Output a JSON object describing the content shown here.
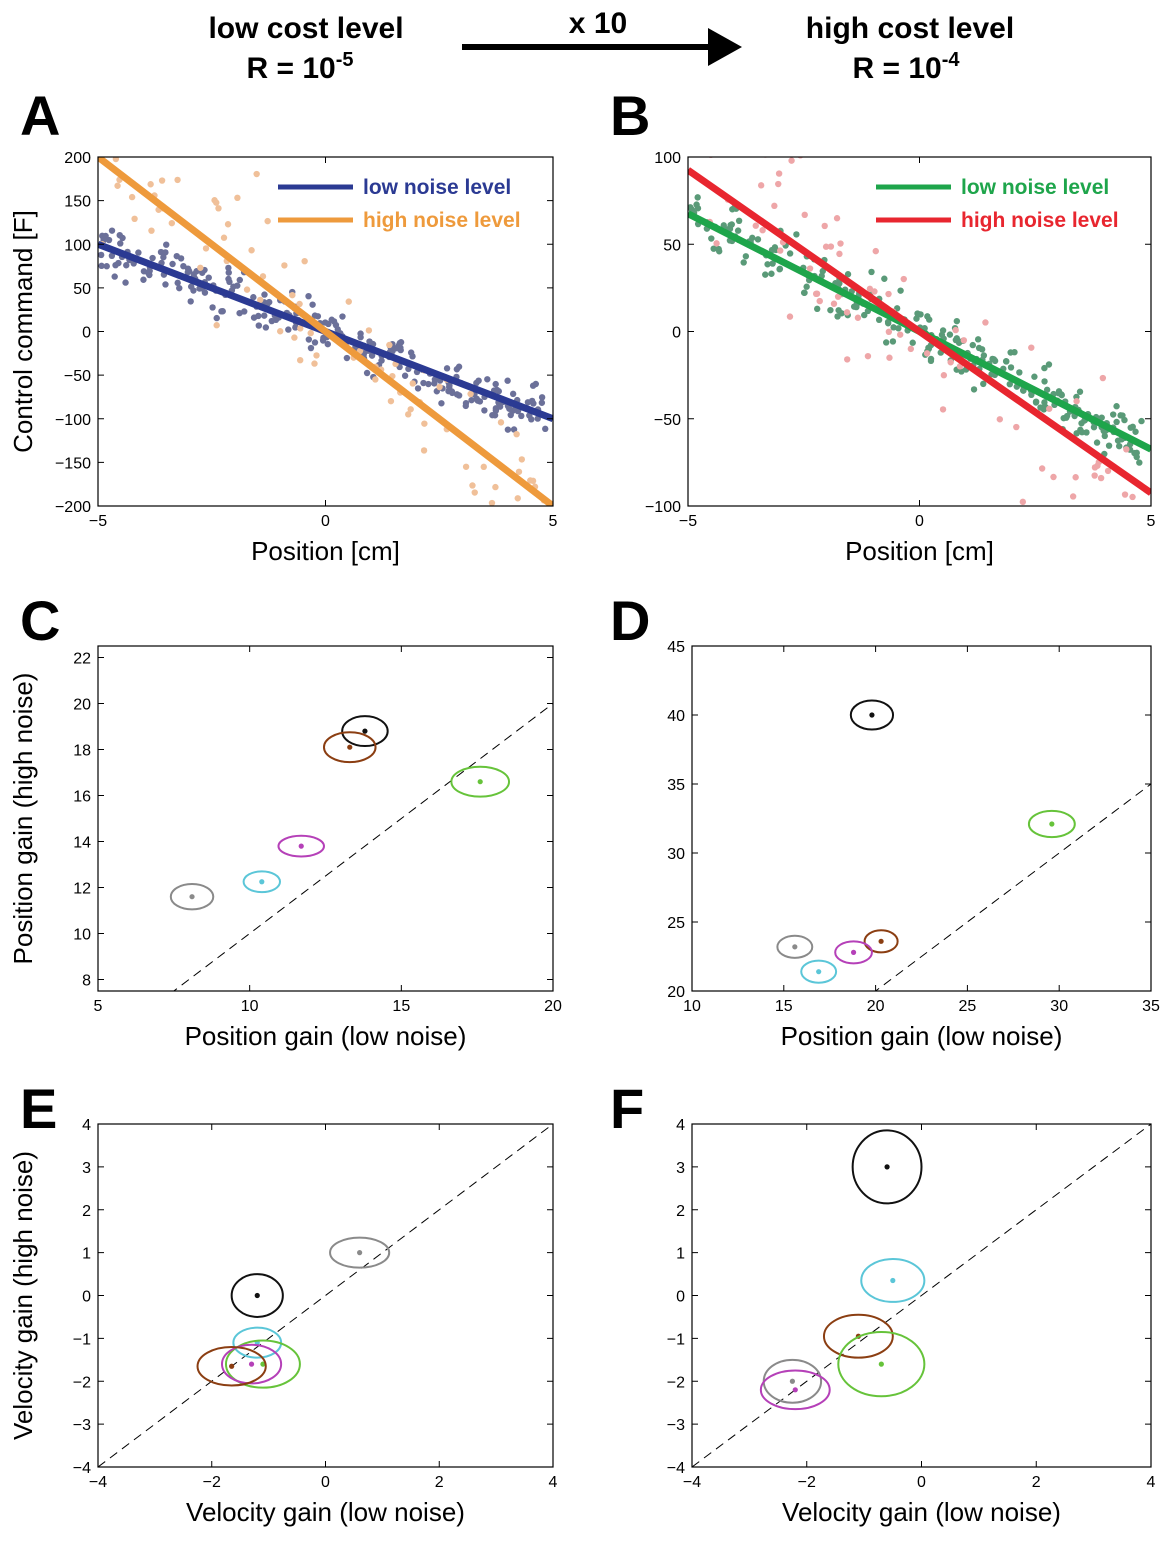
{
  "header": {
    "left_title": "low cost level",
    "left_r_prefix": "R = 10",
    "left_r_exp": "-5",
    "arrow_label": "x 10",
    "right_title": "high cost level",
    "right_r_prefix": "R = 10",
    "right_r_exp": "-4"
  },
  "chart_data": [
    {
      "panel": "A",
      "type": "scatter",
      "xlabel": "Position [cm]",
      "ylabel": "Control command [F]",
      "xlim": [
        -5,
        5
      ],
      "ylim": [
        -200,
        200
      ],
      "xticks": [
        -5,
        0,
        5
      ],
      "yticks": [
        -200,
        -150,
        -100,
        -50,
        0,
        50,
        100,
        150,
        200
      ],
      "legend_position": "top-right",
      "series": [
        {
          "name": "low noise level",
          "color": "#2b3a93",
          "point_color": "#6b7099",
          "fit_slope": -20,
          "fit_intercept": 0,
          "point_count": 260,
          "spread": 14
        },
        {
          "name": "high noise level",
          "color": "#ee9a3c",
          "point_color": "#f0c099",
          "fit_slope": -40,
          "fit_intercept": 0,
          "point_count": 90,
          "spread": 45
        }
      ]
    },
    {
      "panel": "B",
      "type": "scatter",
      "xlabel": "Position [cm]",
      "ylabel": "",
      "xlim": [
        -5,
        5
      ],
      "ylim": [
        -100,
        100
      ],
      "xticks": [
        -5,
        0,
        5
      ],
      "yticks": [
        -100,
        -50,
        0,
        50,
        100
      ],
      "legend_position": "top-right",
      "series": [
        {
          "name": "low noise level",
          "color": "#1ea54b",
          "point_color": "#5a9a78",
          "fit_slope": -13.5,
          "fit_intercept": 0,
          "point_count": 260,
          "spread": 8
        },
        {
          "name": "high noise level",
          "color": "#e8262f",
          "point_color": "#eea6a8",
          "fit_slope": -18.5,
          "fit_intercept": 0,
          "point_count": 80,
          "spread": 24
        }
      ]
    },
    {
      "panel": "C",
      "type": "scatter",
      "xlabel": "Position gain (low noise)",
      "ylabel": "Position gain (high noise)",
      "xlim": [
        5,
        20
      ],
      "ylim": [
        7.5,
        22.5
      ],
      "xticks": [
        5,
        10,
        15,
        20
      ],
      "yticks": [
        8,
        10,
        12,
        14,
        16,
        18,
        20,
        22
      ],
      "diagonal": true,
      "subjects": [
        {
          "x": 13.8,
          "y": 18.8,
          "rx": 0.75,
          "ry": 0.65,
          "color": "#111111"
        },
        {
          "x": 13.3,
          "y": 18.1,
          "rx": 0.85,
          "ry": 0.65,
          "color": "#8b3e12"
        },
        {
          "x": 17.6,
          "y": 16.6,
          "rx": 0.95,
          "ry": 0.65,
          "color": "#66c33a"
        },
        {
          "x": 11.7,
          "y": 13.8,
          "rx": 0.75,
          "ry": 0.45,
          "color": "#b540b8"
        },
        {
          "x": 10.4,
          "y": 12.25,
          "rx": 0.6,
          "ry": 0.45,
          "color": "#5bc6d8"
        },
        {
          "x": 8.1,
          "y": 11.6,
          "rx": 0.7,
          "ry": 0.55,
          "color": "#8a8a8a"
        }
      ]
    },
    {
      "panel": "D",
      "type": "scatter",
      "xlabel": "Position gain (low noise)",
      "ylabel": "",
      "xlim": [
        10,
        35
      ],
      "ylim": [
        20,
        45
      ],
      "xticks": [
        10,
        15,
        20,
        25,
        30,
        35
      ],
      "yticks": [
        20,
        25,
        30,
        35,
        40,
        45
      ],
      "diagonal": true,
      "subjects": [
        {
          "x": 19.8,
          "y": 40.0,
          "rx": 1.15,
          "ry": 1.05,
          "color": "#111111"
        },
        {
          "x": 29.6,
          "y": 32.1,
          "rx": 1.25,
          "ry": 0.95,
          "color": "#66c33a"
        },
        {
          "x": 20.3,
          "y": 23.6,
          "rx": 0.9,
          "ry": 0.8,
          "color": "#8b3e12"
        },
        {
          "x": 15.6,
          "y": 23.2,
          "rx": 0.95,
          "ry": 0.8,
          "color": "#8a8a8a"
        },
        {
          "x": 18.8,
          "y": 22.8,
          "rx": 1.0,
          "ry": 0.8,
          "color": "#b540b8"
        },
        {
          "x": 16.9,
          "y": 21.4,
          "rx": 0.95,
          "ry": 0.8,
          "color": "#5bc6d8"
        }
      ]
    },
    {
      "panel": "E",
      "type": "scatter",
      "xlabel": "Velocity gain (low noise)",
      "ylabel": "Velocity gain (high noise)",
      "xlim": [
        -4,
        4
      ],
      "ylim": [
        -4,
        4
      ],
      "xticks": [
        -4,
        -2,
        0,
        2,
        4
      ],
      "yticks": [
        -4,
        -3,
        -2,
        -1,
        0,
        1,
        2,
        3,
        4
      ],
      "diagonal": true,
      "subjects": [
        {
          "x": 0.6,
          "y": 1.0,
          "rx": 0.52,
          "ry": 0.35,
          "color": "#8a8a8a"
        },
        {
          "x": -1.2,
          "y": 0.0,
          "rx": 0.45,
          "ry": 0.5,
          "color": "#111111"
        },
        {
          "x": -1.2,
          "y": -1.1,
          "rx": 0.42,
          "ry": 0.35,
          "color": "#5bc6d8"
        },
        {
          "x": -1.1,
          "y": -1.6,
          "rx": 0.65,
          "ry": 0.55,
          "color": "#66c33a"
        },
        {
          "x": -1.3,
          "y": -1.6,
          "rx": 0.52,
          "ry": 0.45,
          "color": "#b540b8"
        },
        {
          "x": -1.65,
          "y": -1.65,
          "rx": 0.6,
          "ry": 0.45,
          "color": "#8b3e12"
        }
      ]
    },
    {
      "panel": "F",
      "type": "scatter",
      "xlabel": "Velocity gain (low noise)",
      "ylabel": "",
      "xlim": [
        -4,
        4
      ],
      "ylim": [
        -4,
        4
      ],
      "xticks": [
        -4,
        -2,
        0,
        2,
        4
      ],
      "yticks": [
        -4,
        -3,
        -2,
        -1,
        0,
        1,
        2,
        3,
        4
      ],
      "diagonal": true,
      "subjects": [
        {
          "x": -0.6,
          "y": 3.0,
          "rx": 0.6,
          "ry": 0.85,
          "color": "#111111"
        },
        {
          "x": -0.5,
          "y": 0.35,
          "rx": 0.55,
          "ry": 0.5,
          "color": "#5bc6d8"
        },
        {
          "x": -1.1,
          "y": -0.95,
          "rx": 0.6,
          "ry": 0.5,
          "color": "#8b3e12"
        },
        {
          "x": -0.7,
          "y": -1.6,
          "rx": 0.75,
          "ry": 0.75,
          "color": "#66c33a"
        },
        {
          "x": -2.25,
          "y": -2.0,
          "rx": 0.5,
          "ry": 0.5,
          "color": "#8a8a8a"
        },
        {
          "x": -2.2,
          "y": -2.2,
          "rx": 0.6,
          "ry": 0.45,
          "color": "#b540b8"
        }
      ]
    }
  ]
}
